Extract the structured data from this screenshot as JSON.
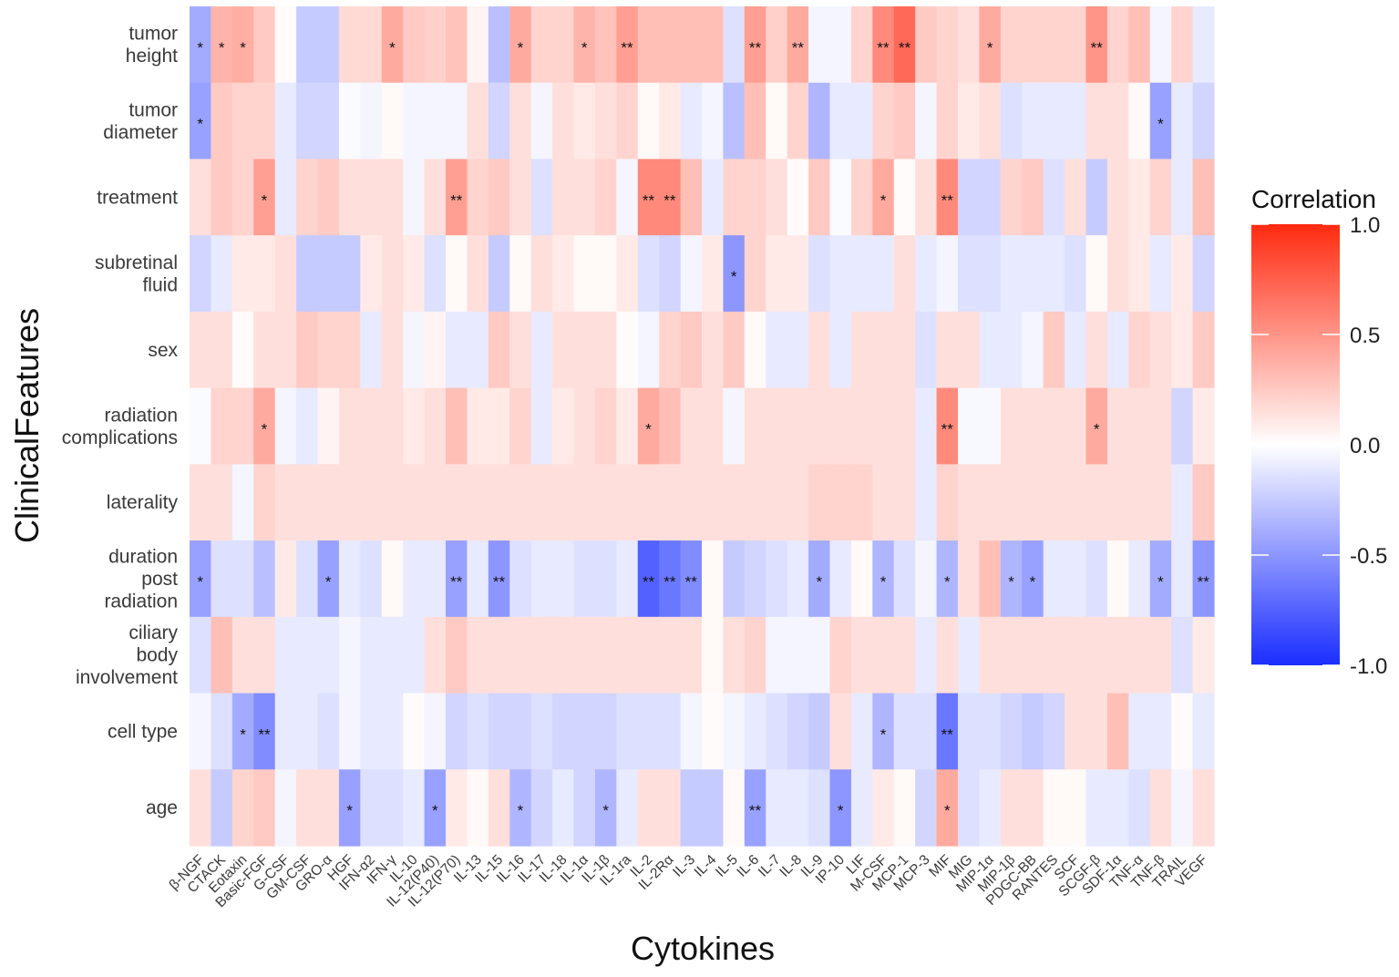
{
  "chart_data": {
    "type": "heatmap",
    "xlabel": "Cytokines",
    "ylabel": "ClinicalFeatures",
    "legend_title": "Correlation",
    "legend_ticks": [
      "1.0",
      "0.5",
      "0.0",
      "-0.5",
      "-1.0"
    ],
    "legend_placement": "right",
    "color_range": [
      -1,
      1
    ],
    "colors": {
      "low": "#1a2dff",
      "mid": "#ffffff",
      "high": "#ff2a10"
    },
    "columns": [
      "β-NGF",
      "CTACK",
      "Eotaxin",
      "Basic-FGF",
      "G-CSF",
      "GM-CSF",
      "GRO-α",
      "HGF",
      "IFN-α2",
      "IFN-γ",
      "IL-10",
      "IL-12(P40)",
      "IL-12(P70)",
      "IL-13",
      "IL-15",
      "IL-16",
      "IL-17",
      "IL-18",
      "IL-1α",
      "IL-1β",
      "IL-1ra",
      "IL-2",
      "IL-2Rα",
      "IL-3",
      "IL-4",
      "IL-5",
      "IL-6",
      "IL-7",
      "IL-8",
      "IL-9",
      "IP-10",
      "LIF",
      "M-CSF",
      "MCP-1",
      "MCP-3",
      "MIF",
      "MIG",
      "MIP-1α",
      "MIP-1β",
      "PDGC-BB",
      "RANTES",
      "SCF",
      "SCGF-β",
      "SDF-1α",
      "TNF-α",
      "TNF-β",
      "TRAIL",
      "VEGF"
    ],
    "rows": [
      {
        "lines": [
          "tumor",
          "height"
        ],
        "values": [
          -0.4,
          0.35,
          0.38,
          0.25,
          0.02,
          -0.25,
          -0.25,
          0.18,
          0.18,
          0.4,
          0.25,
          0.22,
          0.28,
          0.05,
          -0.3,
          0.4,
          0.2,
          0.2,
          0.35,
          0.28,
          0.45,
          0.3,
          0.3,
          0.3,
          0.3,
          -0.15,
          0.45,
          0.22,
          0.4,
          -0.05,
          -0.05,
          0.2,
          0.55,
          0.7,
          0.25,
          0.2,
          0.15,
          0.4,
          0.2,
          0.2,
          0.2,
          0.2,
          0.5,
          0.2,
          0.3,
          -0.05,
          0.2,
          -0.1
        ],
        "stars": [
          "*",
          "*",
          "*",
          "",
          "",
          "",
          "",
          "",
          "",
          "*",
          "",
          "",
          "",
          "",
          "",
          "*",
          "",
          "",
          "*",
          "",
          "**",
          "",
          "",
          "",
          "",
          "",
          "**",
          "",
          "**",
          "",
          "",
          "",
          "**",
          "**",
          "",
          "",
          "",
          "*",
          "",
          "",
          "",
          "",
          "**",
          "",
          "",
          "",
          "",
          ""
        ]
      },
      {
        "lines": [
          "tumor",
          "diameter"
        ],
        "values": [
          -0.45,
          0.25,
          0.2,
          0.2,
          -0.1,
          -0.2,
          -0.2,
          -0.02,
          -0.05,
          0.03,
          -0.05,
          -0.05,
          -0.05,
          0.15,
          -0.2,
          0.15,
          -0.05,
          0.15,
          0.1,
          0.15,
          0.2,
          0.03,
          0.1,
          -0.1,
          -0.05,
          -0.3,
          0.3,
          0.03,
          0.2,
          -0.35,
          -0.1,
          -0.1,
          0.2,
          0.25,
          -0.05,
          0.2,
          0.1,
          0.15,
          -0.15,
          -0.1,
          -0.1,
          -0.1,
          0.15,
          0.15,
          0.03,
          -0.45,
          -0.1,
          -0.2
        ],
        "stars": [
          "*",
          "",
          "",
          "",
          "",
          "",
          "",
          "",
          "",
          "",
          "",
          "",
          "",
          "",
          "",
          "",
          "",
          "",
          "",
          "",
          "",
          "",
          "",
          "",
          "",
          "",
          "",
          "",
          "",
          "",
          "",
          "",
          "",
          "",
          "",
          "",
          "",
          "",
          "",
          "",
          "",
          "",
          "",
          "",
          "",
          "*",
          "",
          ""
        ]
      },
      {
        "lines": [
          "treatment"
        ],
        "values": [
          0.15,
          0.25,
          0.2,
          0.45,
          -0.1,
          0.2,
          0.25,
          0.15,
          0.15,
          0.15,
          -0.05,
          0.15,
          0.45,
          0.2,
          0.25,
          0.15,
          -0.15,
          0.15,
          0.15,
          0.2,
          -0.05,
          0.55,
          0.55,
          0.3,
          -0.1,
          0.2,
          0.2,
          0.15,
          0.02,
          0.25,
          -0.02,
          0.2,
          0.4,
          0.02,
          0.15,
          0.55,
          -0.2,
          -0.2,
          0.2,
          0.25,
          -0.15,
          0.15,
          -0.25,
          0.15,
          0.1,
          0.2,
          -0.1,
          0.3
        ],
        "stars": [
          "",
          "",
          "",
          "*",
          "",
          "",
          "",
          "",
          "",
          "",
          "",
          "",
          "**",
          "",
          "",
          "",
          "",
          "",
          "",
          "",
          "",
          "**",
          "**",
          "",
          "",
          "",
          "",
          "",
          "",
          "",
          "",
          "",
          "*",
          "",
          "",
          "**",
          "",
          "",
          "",
          "",
          "",
          "",
          "",
          "",
          "",
          "",
          "",
          ""
        ]
      },
      {
        "lines": [
          "subretinal",
          "fluid"
        ],
        "values": [
          -0.2,
          -0.1,
          0.1,
          0.1,
          0.15,
          -0.25,
          -0.25,
          -0.25,
          0.1,
          0.15,
          0.1,
          -0.15,
          0.03,
          0.15,
          -0.25,
          0.03,
          0.15,
          0.1,
          0.03,
          0.03,
          0.1,
          -0.15,
          -0.2,
          -0.05,
          0.1,
          -0.5,
          0.2,
          0.1,
          0.1,
          -0.15,
          -0.1,
          -0.1,
          -0.1,
          0.15,
          -0.1,
          -0.05,
          -0.15,
          -0.15,
          -0.1,
          -0.1,
          -0.1,
          -0.15,
          0.03,
          0.15,
          0.1,
          -0.1,
          0.1,
          -0.2
        ],
        "stars": [
          "",
          "",
          "",
          "",
          "",
          "",
          "",
          "",
          "",
          "",
          "",
          "",
          "",
          "",
          "",
          "",
          "",
          "",
          "",
          "",
          "",
          "",
          "",
          "",
          "",
          "*",
          "",
          "",
          "",
          "",
          "",
          "",
          "",
          "",
          "",
          "",
          "",
          "",
          "",
          "",
          "",
          "",
          "",
          "",
          "",
          "",
          "",
          ""
        ]
      },
      {
        "lines": [
          "sex"
        ],
        "values": [
          0.15,
          0.15,
          0.02,
          0.15,
          0.15,
          0.25,
          0.2,
          0.2,
          -0.1,
          0.15,
          -0.05,
          0.05,
          -0.1,
          -0.1,
          0.25,
          0.15,
          -0.1,
          0.15,
          0.15,
          0.15,
          0.02,
          -0.05,
          0.2,
          0.25,
          0.15,
          0.25,
          0.03,
          -0.1,
          -0.1,
          0.15,
          -0.1,
          0.15,
          0.15,
          0.15,
          -0.15,
          0.15,
          0.15,
          -0.1,
          -0.1,
          -0.05,
          0.25,
          -0.1,
          0.15,
          -0.1,
          0.2,
          0.15,
          0.1,
          0.25
        ],
        "stars": [
          "",
          "",
          "",
          "",
          "",
          "",
          "",
          "",
          "",
          "",
          "",
          "",
          "",
          "",
          "",
          "",
          "",
          "",
          "",
          "",
          "",
          "",
          "",
          "",
          "",
          "",
          "",
          "",
          "",
          "",
          "",
          "",
          "",
          "",
          "",
          "",
          "",
          "",
          "",
          "",
          "",
          "",
          "",
          "",
          "",
          "",
          "",
          ""
        ]
      },
      {
        "lines": [
          "radiation",
          "complications"
        ],
        "values": [
          -0.02,
          0.2,
          0.2,
          0.4,
          -0.05,
          -0.1,
          0.05,
          0.15,
          0.15,
          0.15,
          0.1,
          0.15,
          0.3,
          0.1,
          0.1,
          0.2,
          -0.1,
          0.1,
          0.15,
          0.2,
          0.1,
          0.4,
          0.3,
          0.15,
          0.15,
          -0.05,
          0.15,
          0.15,
          0.15,
          0.15,
          0.15,
          0.15,
          0.15,
          0.15,
          -0.1,
          0.55,
          -0.03,
          -0.03,
          0.15,
          0.15,
          0.15,
          0.15,
          0.4,
          0.15,
          0.15,
          0.15,
          -0.2,
          0.1
        ],
        "stars": [
          "",
          "",
          "",
          "*",
          "",
          "",
          "",
          "",
          "",
          "",
          "",
          "",
          "",
          "",
          "",
          "",
          "",
          "",
          "",
          "",
          "",
          "*",
          "",
          "",
          "",
          "",
          "",
          "",
          "",
          "",
          "",
          "",
          "",
          "",
          "",
          "**",
          "",
          "",
          "",
          "",
          "",
          "",
          "*",
          "",
          "",
          "",
          "",
          ""
        ]
      },
      {
        "lines": [
          "laterality"
        ],
        "values": [
          0.15,
          0.15,
          -0.05,
          0.2,
          0.15,
          0.15,
          0.15,
          0.15,
          0.15,
          0.15,
          0.15,
          0.15,
          0.15,
          0.15,
          0.15,
          0.15,
          0.15,
          0.15,
          0.15,
          0.15,
          0.15,
          0.15,
          0.15,
          0.15,
          0.15,
          0.15,
          0.15,
          0.15,
          0.15,
          0.2,
          0.2,
          0.2,
          0.15,
          0.15,
          -0.1,
          0.2,
          0.15,
          0.15,
          0.15,
          0.15,
          0.15,
          0.15,
          0.15,
          0.15,
          0.15,
          0.15,
          -0.1,
          0.25
        ],
        "stars": [
          "",
          "",
          "",
          "",
          "",
          "",
          "",
          "",
          "",
          "",
          "",
          "",
          "",
          "",
          "",
          "",
          "",
          "",
          "",
          "",
          "",
          "",
          "",
          "",
          "",
          "",
          "",
          "",
          "",
          "",
          "",
          "",
          "",
          "",
          "",
          "",
          "",
          "",
          "",
          "",
          "",
          "",
          "",
          "",
          "",
          "",
          "",
          ""
        ]
      },
      {
        "lines": [
          "duration",
          "post",
          "radiation"
        ],
        "values": [
          -0.45,
          -0.15,
          -0.15,
          -0.3,
          0.1,
          -0.15,
          -0.45,
          -0.1,
          -0.15,
          0.03,
          -0.1,
          -0.1,
          -0.45,
          -0.1,
          -0.5,
          -0.15,
          -0.1,
          -0.1,
          -0.15,
          -0.15,
          -0.1,
          -0.75,
          -0.65,
          -0.55,
          0.03,
          -0.25,
          -0.2,
          -0.15,
          -0.1,
          -0.4,
          -0.1,
          0.03,
          -0.35,
          -0.15,
          -0.05,
          -0.35,
          0.15,
          0.3,
          -0.35,
          -0.45,
          -0.1,
          -0.1,
          -0.15,
          0.03,
          -0.1,
          -0.4,
          -0.1,
          -0.5
        ],
        "stars": [
          "*",
          "",
          "",
          "",
          "",
          "",
          "*",
          "",
          "",
          "",
          "",
          "",
          "**",
          "",
          "**",
          "",
          "",
          "",
          "",
          "",
          "",
          "**",
          "**",
          "**",
          "",
          "",
          "",
          "",
          "",
          "*",
          "",
          "",
          "*",
          "",
          "",
          "*",
          "",
          "",
          "*",
          "*",
          "",
          "",
          "",
          "",
          "",
          "*",
          "",
          "**"
        ]
      },
      {
        "lines": [
          "ciliary",
          "body",
          "involvement"
        ],
        "values": [
          -0.15,
          0.3,
          0.15,
          0.15,
          -0.1,
          -0.1,
          -0.1,
          -0.05,
          -0.1,
          -0.1,
          -0.1,
          0.15,
          0.25,
          0.15,
          0.15,
          0.15,
          0.15,
          0.15,
          0.15,
          0.15,
          0.15,
          0.15,
          0.15,
          0.15,
          0.03,
          0.15,
          0.2,
          -0.05,
          -0.05,
          -0.05,
          0.2,
          0.15,
          0.15,
          0.15,
          -0.1,
          0.15,
          -0.1,
          0.15,
          0.15,
          0.15,
          0.15,
          0.15,
          0.15,
          0.15,
          0.15,
          0.15,
          -0.15,
          0.1
        ],
        "stars": [
          "",
          "",
          "",
          "",
          "",
          "",
          "",
          "",
          "",
          "",
          "",
          "",
          "",
          "",
          "",
          "",
          "",
          "",
          "",
          "",
          "",
          "",
          "",
          "",
          "",
          "",
          "",
          "",
          "",
          "",
          "",
          "",
          "",
          "",
          "",
          "",
          "",
          "",
          "",
          "",
          "",
          "",
          "",
          "",
          "",
          "",
          "",
          ""
        ]
      },
      {
        "lines": [
          "cell type"
        ],
        "values": [
          -0.05,
          -0.15,
          -0.4,
          -0.55,
          -0.1,
          -0.1,
          -0.15,
          -0.05,
          -0.1,
          -0.1,
          0.02,
          -0.05,
          -0.2,
          -0.15,
          -0.2,
          -0.2,
          -0.15,
          -0.2,
          -0.2,
          -0.2,
          -0.15,
          -0.15,
          -0.15,
          -0.05,
          0.02,
          -0.05,
          -0.1,
          -0.15,
          -0.2,
          -0.25,
          0.15,
          -0.1,
          -0.35,
          -0.15,
          -0.15,
          -0.65,
          -0.15,
          -0.15,
          -0.2,
          -0.25,
          -0.2,
          0.15,
          0.15,
          0.3,
          -0.1,
          -0.1,
          0.02,
          -0.1
        ],
        "stars": [
          "",
          "",
          "*",
          "**",
          "",
          "",
          "",
          "",
          "",
          "",
          "",
          "",
          "",
          "",
          "",
          "",
          "",
          "",
          "",
          "",
          "",
          "",
          "",
          "",
          "",
          "",
          "",
          "",
          "",
          "",
          "",
          "",
          "*",
          "",
          "",
          "**",
          "",
          "",
          "",
          "",
          "",
          "",
          "",
          "",
          "",
          "",
          "",
          ""
        ]
      },
      {
        "lines": [
          "age"
        ],
        "values": [
          0.15,
          -0.25,
          0.2,
          0.25,
          -0.05,
          0.15,
          0.15,
          -0.45,
          -0.15,
          -0.15,
          -0.1,
          -0.45,
          0.1,
          0.03,
          0.15,
          -0.35,
          -0.2,
          -0.1,
          -0.2,
          -0.35,
          -0.1,
          0.15,
          0.15,
          -0.25,
          -0.25,
          0.03,
          -0.45,
          -0.1,
          -0.1,
          -0.15,
          -0.5,
          -0.1,
          0.1,
          0.03,
          -0.2,
          0.4,
          -0.15,
          -0.1,
          0.15,
          0.15,
          0.03,
          0.03,
          -0.1,
          -0.1,
          -0.15,
          0.15,
          -0.05,
          0.15
        ],
        "stars": [
          "",
          "",
          "",
          "",
          "",
          "",
          "",
          "*",
          "",
          "",
          "",
          "*",
          "",
          "",
          "",
          "*",
          "",
          "",
          "",
          "*",
          "",
          "",
          "",
          "",
          "",
          "",
          "**",
          "",
          "",
          "",
          "*",
          "",
          "",
          "",
          "",
          "*",
          "",
          "",
          "",
          "",
          "",
          "",
          "",
          "",
          "",
          "",
          "",
          ""
        ]
      }
    ]
  }
}
